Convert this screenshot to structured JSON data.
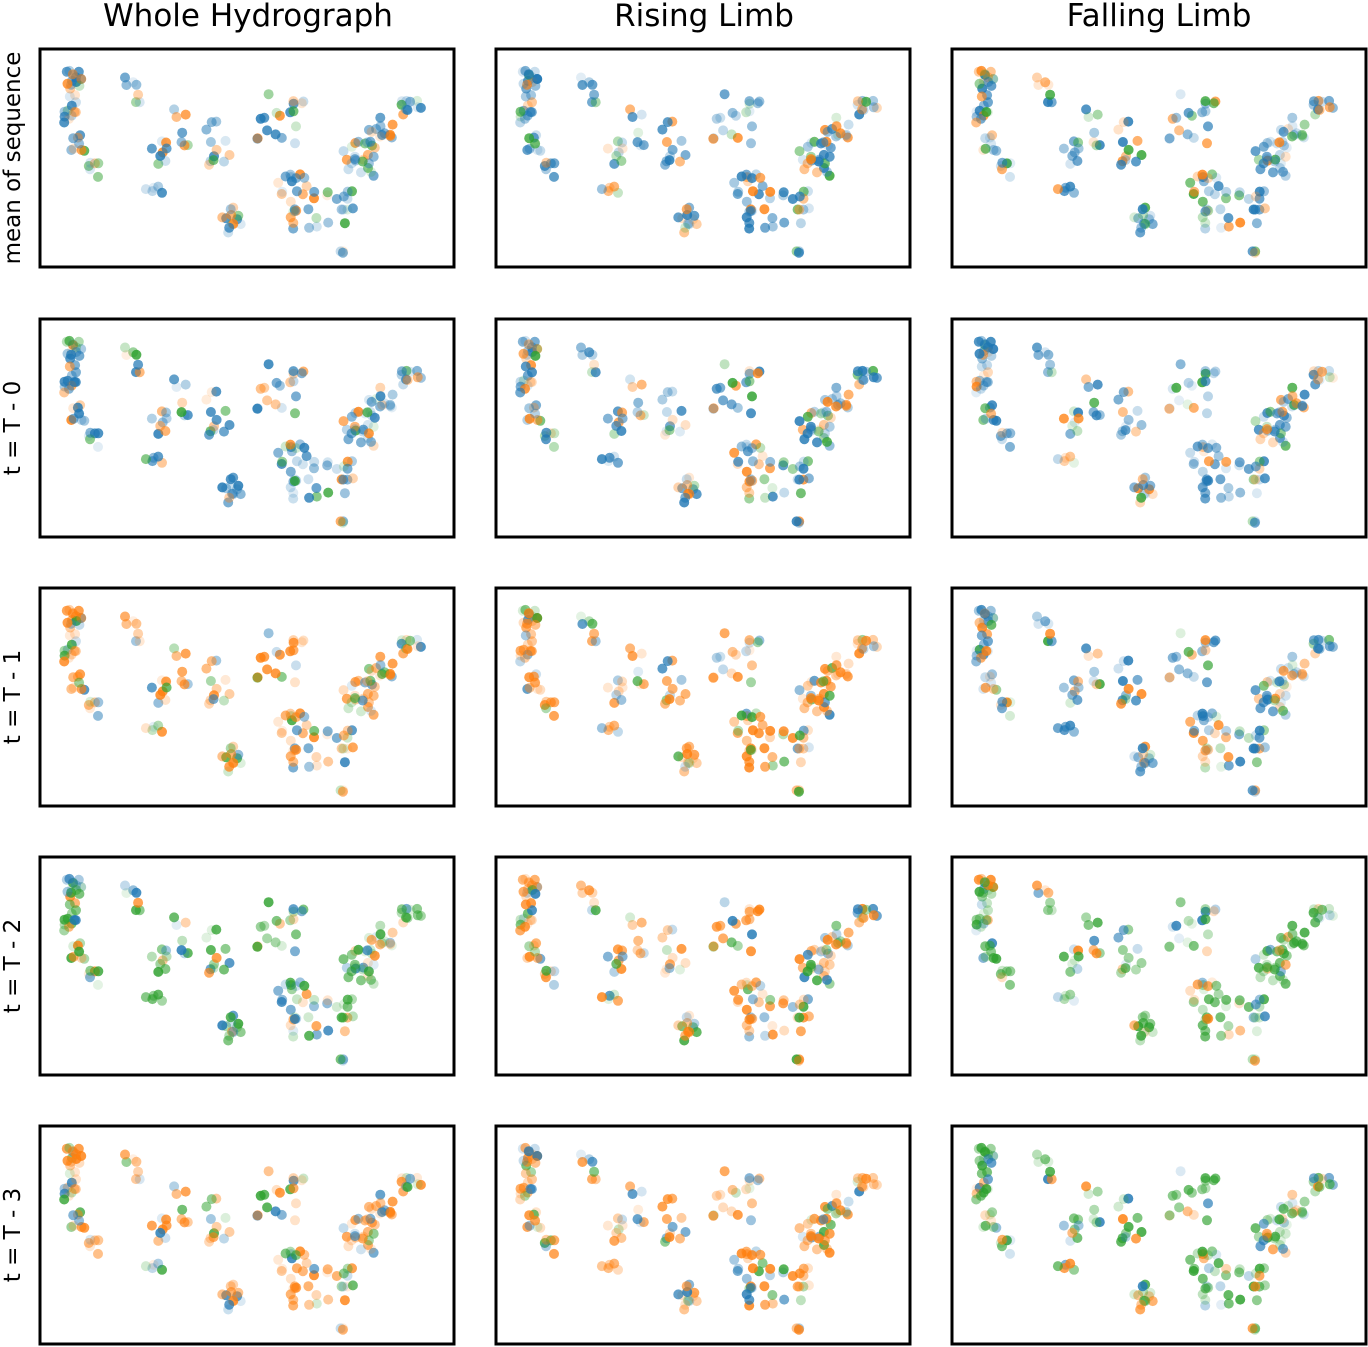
{
  "figure": {
    "columns": [
      "Whole Hydrograph",
      "Rising Limb",
      "Falling Limb"
    ],
    "rows": [
      "mean of sequence",
      "t = T - 0",
      "t = T - 1",
      "t = T - 2",
      "t = T - 3"
    ]
  },
  "chart_data": {
    "type": "scatter",
    "kind": "small-multiples map scatter (station locations over the contiguous United States)",
    "grid": false,
    "axes_visible": false,
    "legend": "none",
    "colors": {
      "blue": "#1f77b4",
      "orange": "#ff7f0e",
      "green": "#2ca02c"
    },
    "panel_layout": "5 rows x 3 columns",
    "dominant_color_by_panel": [
      [
        "blue",
        "blue",
        "blue"
      ],
      [
        "blue",
        "blue",
        "blue"
      ],
      [
        "orange",
        "orange",
        "blue"
      ],
      [
        "green",
        "orange",
        "green"
      ],
      [
        "orange",
        "orange",
        "green"
      ]
    ]
  }
}
